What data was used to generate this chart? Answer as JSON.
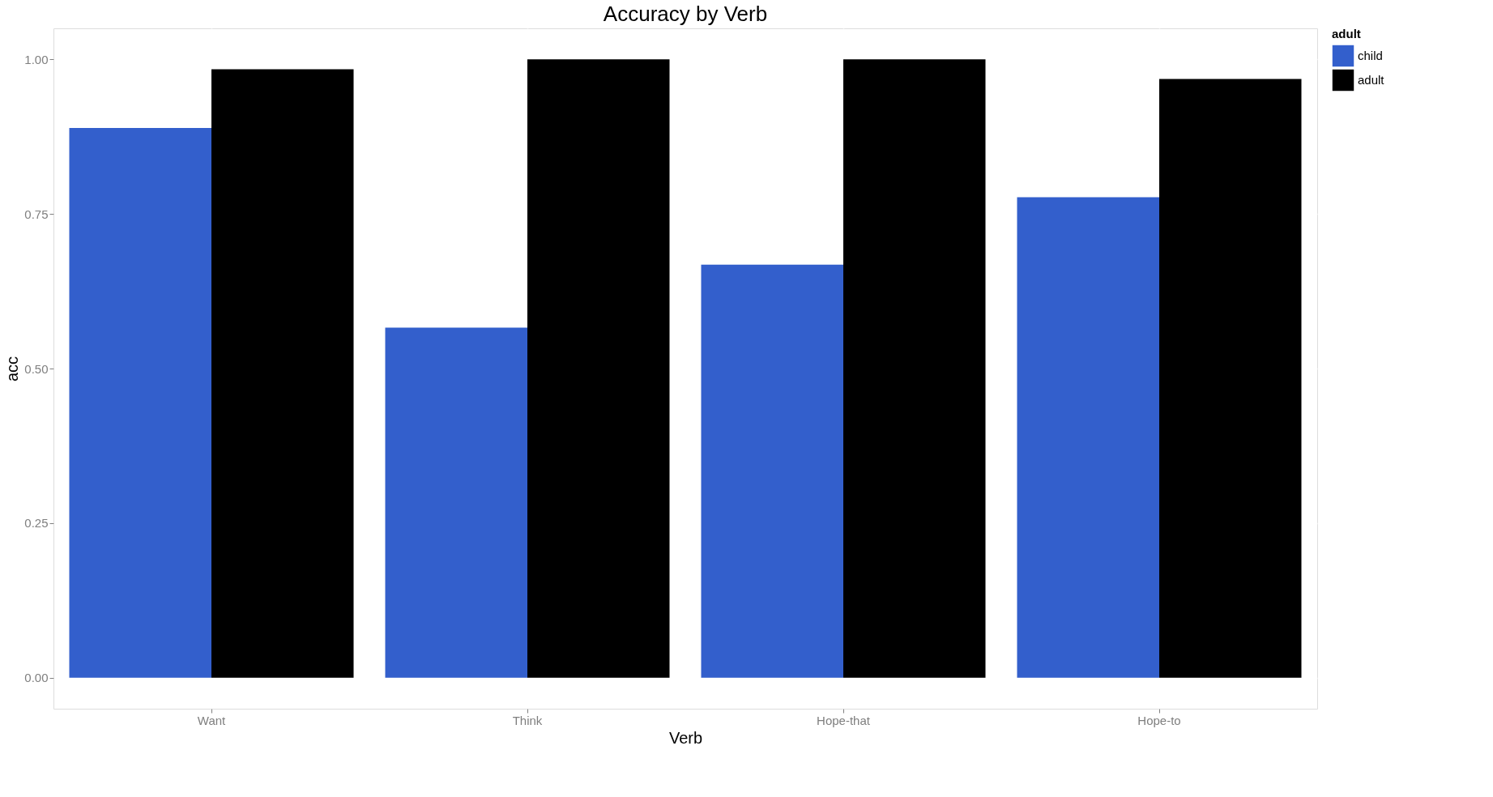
{
  "chart_data": {
    "type": "bar",
    "title": "Accuracy by Verb",
    "xlabel": "Verb",
    "ylabel": "acc",
    "legend_title": "adult",
    "categories": [
      "Want",
      "Think",
      "Hope-that",
      "Hope-to"
    ],
    "series": [
      {
        "name": "child",
        "color": "#335fcc",
        "values": [
          0.889,
          0.566,
          0.668,
          0.777
        ]
      },
      {
        "name": "adult",
        "color": "#000000",
        "values": [
          0.984,
          1.0,
          1.0,
          0.968
        ]
      }
    ],
    "ylim": [
      -0.05,
      1.05
    ],
    "yticks": [
      {
        "value": 0,
        "label": "0.00"
      },
      {
        "value": 0.25,
        "label": "0.25"
      },
      {
        "value": 0.5,
        "label": "0.50"
      },
      {
        "value": 0.75,
        "label": "0.75"
      },
      {
        "value": 1,
        "label": "1.00"
      }
    ],
    "grid": true,
    "legend": "right"
  }
}
